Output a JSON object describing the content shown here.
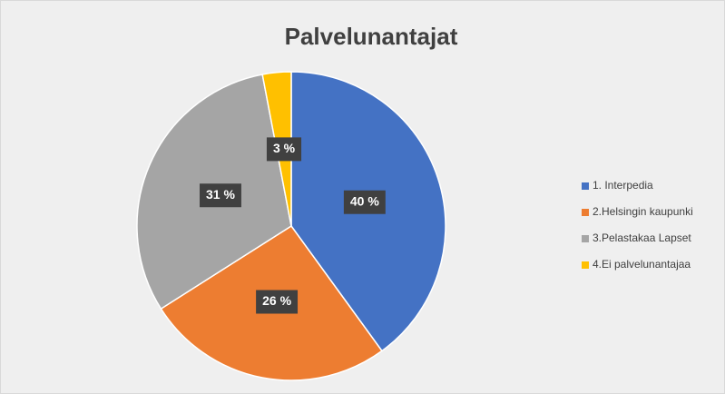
{
  "chart_data": {
    "type": "pie",
    "title": "Palvelunantajat",
    "categories": [
      "1. Interpedia",
      "2.Helsingin kaupunki",
      "3.Pelastakaa Lapset",
      "4.Ei palvelunantajaa"
    ],
    "values": [
      40,
      26,
      31,
      3
    ],
    "value_labels": [
      "40 %",
      "26 %",
      "31 %",
      "3 %"
    ],
    "colors": [
      "#4472c4",
      "#ed7d31",
      "#a5a5a5",
      "#ffc000"
    ],
    "legend": "right"
  }
}
